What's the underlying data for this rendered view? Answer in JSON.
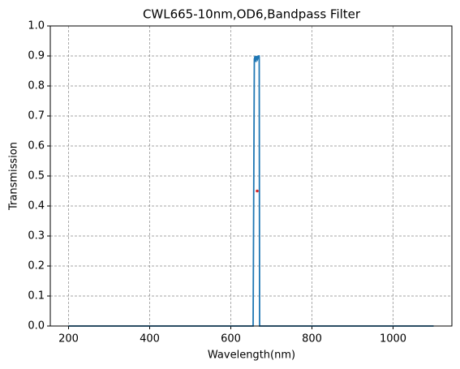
{
  "chart_data": {
    "type": "line",
    "title": "CWL665-10nm,OD6,Bandpass Filter",
    "x_label": "Wavelength(nm)",
    "y_label": "Transmission",
    "series": [
      {
        "color": "#1f77b4",
        "marker": false,
        "x": [
          200,
          650,
          655,
          658,
          660,
          662,
          664,
          666,
          668,
          670,
          671,
          675,
          1100
        ],
        "values": [
          0,
          0,
          0,
          0.89,
          0.9,
          0.88,
          0.9,
          0.89,
          0.9,
          0.9,
          0,
          0,
          0
        ]
      },
      {
        "color": "#d62728",
        "marker": true,
        "x": [
          665
        ],
        "values": [
          0.45
        ]
      }
    ],
    "xlim": [
      155,
      1145
    ],
    "ylim": [
      0,
      1
    ],
    "xticks": [
      200,
      400,
      600,
      800,
      1000
    ],
    "yticks": [
      {
        "value": 0,
        "label": "0.0"
      },
      0.1,
      0.2,
      0.3,
      0.4,
      0.5,
      0.6,
      0.7,
      0.8,
      0.9,
      {
        "value": 1,
        "label": "1.0"
      }
    ],
    "grid": true
  }
}
